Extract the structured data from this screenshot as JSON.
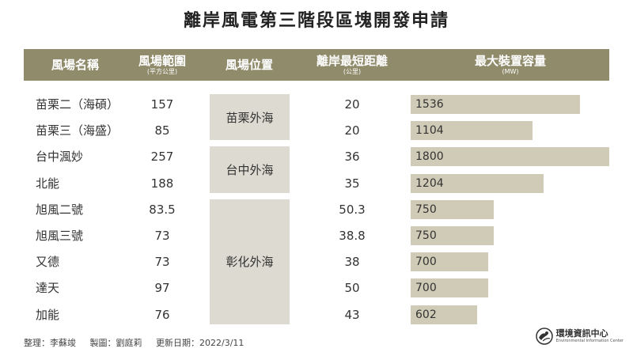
{
  "title": "離岸風電第三階段區塊開發申請",
  "columns": {
    "name": {
      "label": "風場名稱"
    },
    "area": {
      "label": "風場範圍",
      "unit": "(平方公里)"
    },
    "location": {
      "label": "風場位置"
    },
    "distance": {
      "label": "離岸最短距離",
      "unit": "(公里)"
    },
    "capacity": {
      "label": "最大裝置容量",
      "unit": "(MW)"
    }
  },
  "chart_data": {
    "type": "table",
    "title": "離岸風電第三階段區塊開發申請",
    "rows": [
      {
        "name": "苗栗二（海碩）",
        "area": "157",
        "distance": "20",
        "capacity": 1536
      },
      {
        "name": "苗栗三（海盛）",
        "area": "85",
        "distance": "20",
        "capacity": 1104
      },
      {
        "name": "台中渢妙",
        "area": "257",
        "distance": "36",
        "capacity": 1800
      },
      {
        "name": "北能",
        "area": "188",
        "distance": "35",
        "capacity": 1204
      },
      {
        "name": "旭風二號",
        "area": "83.5",
        "distance": "50.3",
        "capacity": 750
      },
      {
        "name": "旭風三號",
        "area": "73",
        "distance": "38.8",
        "capacity": 750
      },
      {
        "name": "又德",
        "area": "73",
        "distance": "38",
        "capacity": 700
      },
      {
        "name": "達天",
        "area": "97",
        "distance": "50",
        "capacity": 700
      },
      {
        "name": "加能",
        "area": "76",
        "distance": "43",
        "capacity": 602
      }
    ],
    "location_groups": [
      {
        "label": "苗栗外海",
        "rows": [
          0,
          1
        ]
      },
      {
        "label": "台中外海",
        "rows": [
          2,
          3
        ]
      },
      {
        "label": "彰化外海",
        "rows": [
          4,
          5,
          6,
          7,
          8
        ]
      }
    ],
    "capacity_max": 1800
  },
  "footer": {
    "organizer": "整理：李蘇竣",
    "designer": "製圖：劉庭莉",
    "updated": "更新日期：2022/3/11"
  },
  "logo": {
    "name": "環境資訊中心",
    "english": "Environmental Information Center",
    "icon": "eic-logo-icon"
  },
  "colors": {
    "header_bg": "#8f8b6b",
    "location_bg": "#dddbd1",
    "bar": "#cfcbb6"
  }
}
